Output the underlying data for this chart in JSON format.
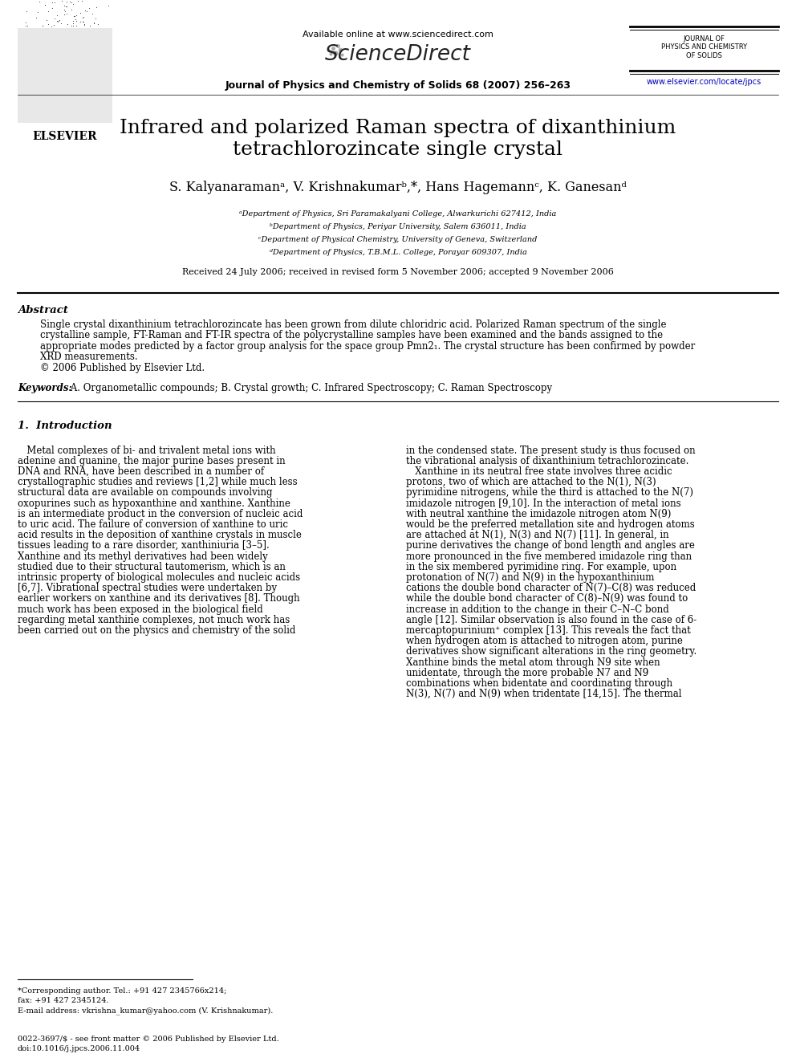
{
  "bg_color": "#ffffff",
  "page_width": 9.92,
  "page_height": 13.23,
  "elsevier_text": "ELSEVIER",
  "available_online": "Available online at www.sciencedirect.com",
  "sciencedirect_text": "ScienceDirect",
  "journal_name_header": "Journal of Physics and Chemistry of Solids 68 (2007) 256–263",
  "journal_right_top": "JOURNAL OF\nPHYSICS AND CHEMISTRY\nOF SOLIDS",
  "journal_url": "www.elsevier.com/locate/jpcs",
  "article_title_line1": "Infrared and polarized Raman spectra of dixanthinium",
  "article_title_line2": "tetrachlorozincate single crystal",
  "authors": "S. Kalyanaramanᵃ, V. Krishnakumarᵇ,*, Hans Hagemannᶜ, K. Ganesanᵈ",
  "affil_a": "ᵃDepartment of Physics, Sri Paramakalyani College, Alwarkurichi 627412, India",
  "affil_b": "ᵇDepartment of Physics, Periyar University, Salem 636011, India",
  "affil_c": "ᶜDepartment of Physical Chemistry, University of Geneva, Switzerland",
  "affil_d": "ᵈDepartment of Physics, T.B.M.L. College, Porayar 609307, India",
  "received_line": "Received 24 July 2006; received in revised form 5 November 2006; accepted 9 November 2006",
  "abstract_header": "Abstract",
  "abstract_body": [
    "Single crystal dixanthinium tetrachlorozincate has been grown from dilute chloridric acid. Polarized Raman spectrum of the single",
    "crystalline sample, FT-Raman and FT-IR spectra of the polycrystalline samples have been examined and the bands assigned to the",
    "appropriate modes predicted by a factor group analysis for the space group Pmn2₁. The crystal structure has been confirmed by powder",
    "XRD measurements.",
    "© 2006 Published by Elsevier Ltd."
  ],
  "keywords_italic": "Keywords:",
  "keywords_rest": " A. Organometallic compounds; B. Crystal growth; C. Infrared Spectroscopy; C. Raman Spectroscopy",
  "section1_header": "1.  Introduction",
  "section1_col1_lines": [
    "   Metal complexes of bi- and trivalent metal ions with",
    "adenine and guanine, the major purine bases present in",
    "DNA and RNA, have been described in a number of",
    "crystallographic studies and reviews [1,2] while much less",
    "structural data are available on compounds involving",
    "oxopurines such as hypoxanthine and xanthine. Xanthine",
    "is an intermediate product in the conversion of nucleic acid",
    "to uric acid. The failure of conversion of xanthine to uric",
    "acid results in the deposition of xanthine crystals in muscle",
    "tissues leading to a rare disorder, xanthiniuria [3–5].",
    "Xanthine and its methyl derivatives had been widely",
    "studied due to their structural tautomerism, which is an",
    "intrinsic property of biological molecules and nucleic acids",
    "[6,7]. Vibrational spectral studies were undertaken by",
    "earlier workers on xanthine and its derivatives [8]. Though",
    "much work has been exposed in the biological field",
    "regarding metal xanthine complexes, not much work has",
    "been carried out on the physics and chemistry of the solid"
  ],
  "section1_col2_lines": [
    "in the condensed state. The present study is thus focused on",
    "the vibrational analysis of dixanthinium tetrachlorozincate.",
    "   Xanthine in its neutral free state involves three acidic",
    "protons, two of which are attached to the N(1), N(3)",
    "pyrimidine nitrogens, while the third is attached to the N(7)",
    "imidazole nitrogen [9,10]. In the interaction of metal ions",
    "with neutral xanthine the imidazole nitrogen atom N(9)",
    "would be the preferred metallation site and hydrogen atoms",
    "are attached at N(1), N(3) and N(7) [11]. In general, in",
    "purine derivatives the change of bond length and angles are",
    "more pronounced in the five membered imidazole ring than",
    "in the six membered pyrimidine ring. For example, upon",
    "protonation of N(7) and N(9) in the hypoxanthinium",
    "cations the double bond character of N(7)–C(8) was reduced",
    "while the double bond character of C(8)–N(9) was found to",
    "increase in addition to the change in their C–N–C bond",
    "angle [12]. Similar observation is also found in the case of 6-",
    "mercaptopurinium⁺ complex [13]. This reveals the fact that",
    "when hydrogen atom is attached to nitrogen atom, purine",
    "derivatives show significant alterations in the ring geometry.",
    "Xanthine binds the metal atom through N9 site when",
    "unidentate, through the more probable N7 and N9",
    "combinations when bidentate and coordinating through",
    "N(3), N(7) and N(9) when tridentate [14,15]. The thermal"
  ],
  "footer_line1": "*Corresponding author. Tel.: +91 427 2345766x214;",
  "footer_line2": "fax: +91 427 2345124.",
  "footer_line3": "E-mail address: vkrishna_kumar@yahoo.com (V. Krishnakumar).",
  "footer_issn1": "0022-3697/$ - see front matter © 2006 Published by Elsevier Ltd.",
  "footer_issn2": "doi:10.1016/j.jpcs.2006.11.004"
}
